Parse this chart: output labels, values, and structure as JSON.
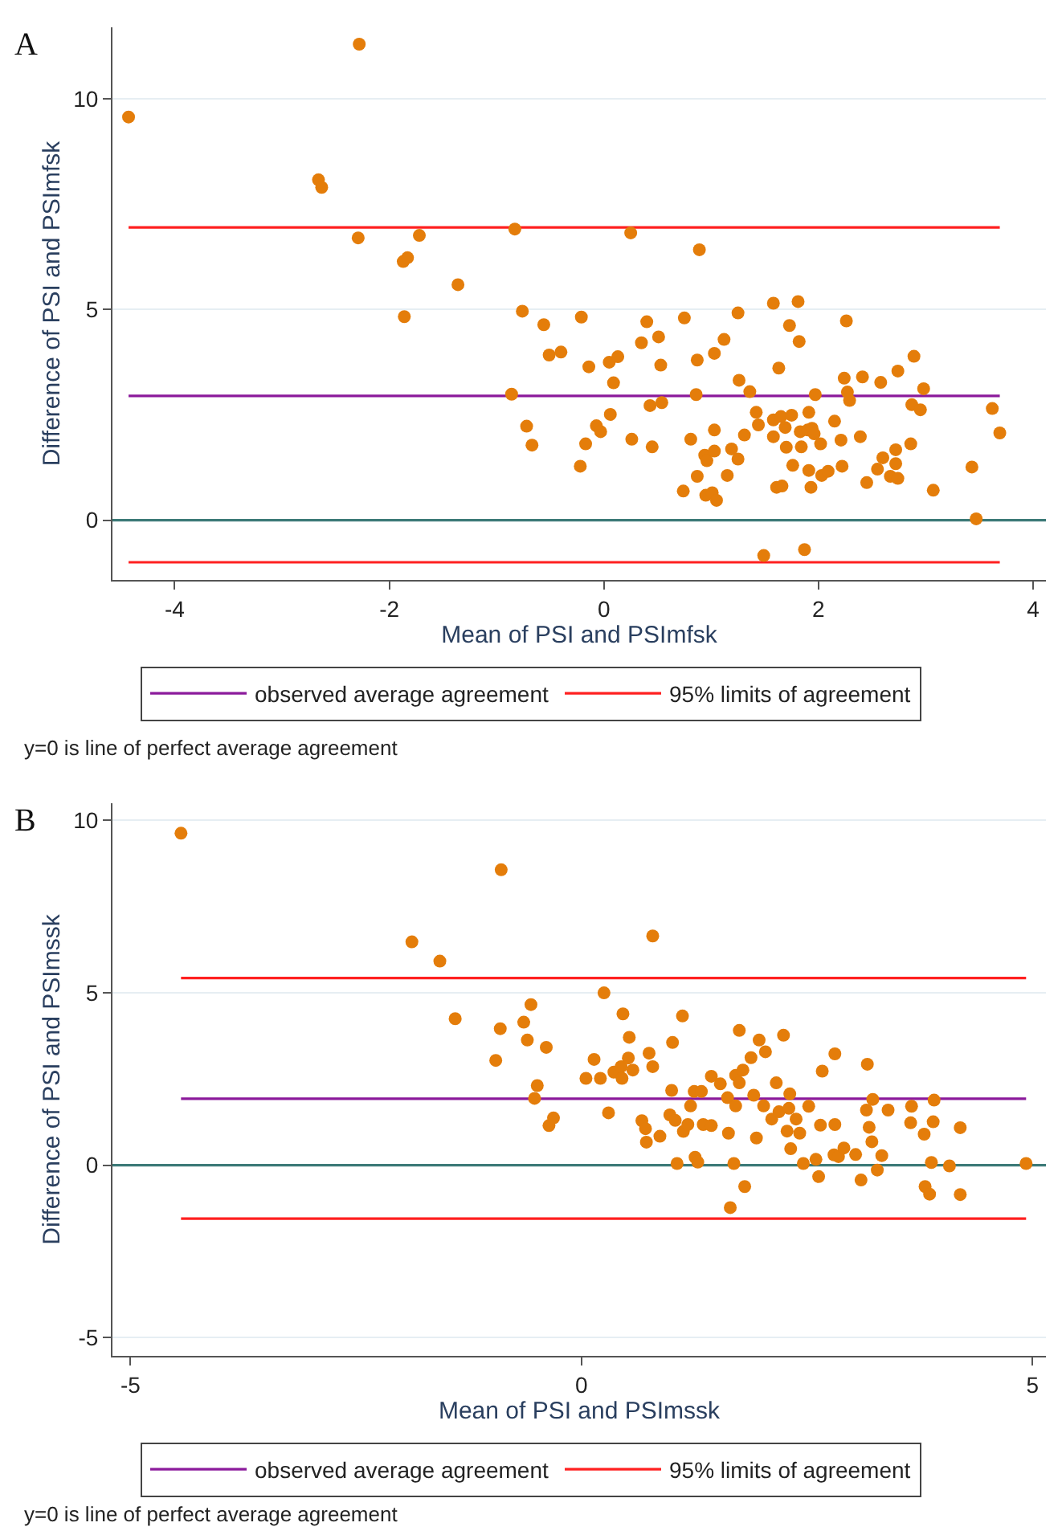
{
  "chart_data": [
    {
      "type": "scatter",
      "title": "A",
      "xlabel": "Mean of PSI and PSImfsk",
      "ylabel": "Difference of PSI and PSImfsk",
      "xlim": [
        -4.58,
        4.12
      ],
      "ylim": [
        -1.42,
        11.7
      ],
      "xticks": [
        -4,
        -2,
        0,
        2,
        4
      ],
      "yticks": [
        0,
        5,
        10
      ],
      "grid": "y",
      "legend": "bottom",
      "marker": "circle",
      "series": [
        {
          "color": "#e47d0a",
          "x": [
            -4.43,
            -2.28,
            -2.66,
            -2.63,
            -2.29,
            -1.72,
            -1.87,
            -1.83,
            -1.36,
            -1.86,
            -0.83,
            -0.76,
            -0.86,
            -0.72,
            -0.67,
            -0.56,
            -0.51,
            -0.4,
            -0.21,
            -0.14,
            -0.22,
            -0.17,
            -0.07,
            -0.03,
            0.05,
            0.13,
            0.09,
            0.06,
            0.25,
            0.26,
            0.35,
            0.4,
            0.51,
            0.53,
            0.43,
            0.54,
            0.45,
            0.75,
            0.87,
            0.86,
            0.81,
            0.74,
            0.87,
            0.89,
            0.94,
            0.96,
            1.03,
            1.03,
            0.95,
            1.01,
            1.05,
            1.03,
            1.12,
            1.15,
            1.19,
            1.25,
            1.25,
            1.26,
            1.31,
            1.36,
            1.42,
            1.44,
            1.49,
            1.58,
            1.58,
            1.58,
            1.63,
            1.61,
            1.66,
            1.65,
            1.69,
            1.7,
            1.73,
            1.75,
            1.76,
            1.81,
            1.82,
            1.83,
            1.84,
            1.87,
            1.91,
            1.91,
            1.9,
            1.93,
            1.94,
            1.96,
            1.97,
            2.02,
            2.03,
            2.09,
            2.15,
            2.21,
            2.22,
            2.24,
            2.26,
            2.27,
            2.29,
            2.39,
            2.41,
            2.45,
            2.55,
            2.58,
            2.6,
            2.67,
            2.72,
            2.72,
            2.74,
            2.74,
            2.86,
            2.87,
            2.89,
            2.95,
            2.98,
            3.07,
            3.43,
            3.47,
            3.62,
            3.69
          ],
          "values": [
            9.57,
            11.3,
            8.08,
            7.9,
            6.7,
            6.76,
            6.14,
            6.23,
            5.59,
            4.83,
            6.91,
            4.96,
            2.99,
            2.23,
            1.78,
            4.64,
            3.92,
            3.99,
            4.82,
            3.64,
            1.28,
            1.81,
            2.24,
            2.1,
            3.75,
            3.88,
            3.26,
            2.51,
            6.82,
            1.92,
            4.21,
            4.71,
            4.35,
            3.68,
            2.72,
            2.79,
            1.74,
            4.8,
            3.8,
            2.98,
            1.92,
            0.69,
            1.04,
            6.42,
            1.54,
            1.41,
            1.64,
            2.14,
            0.59,
            0.65,
            0.47,
            3.96,
            4.29,
            1.06,
            1.69,
            1.45,
            4.92,
            3.32,
            2.02,
            3.05,
            2.56,
            2.26,
            -0.84,
            5.15,
            1.98,
            2.38,
            3.61,
            0.78,
            0.81,
            2.46,
            2.2,
            1.73,
            4.62,
            2.49,
            1.3,
            5.19,
            4.24,
            2.1,
            1.74,
            -0.7,
            2.56,
            1.18,
            2.14,
            0.78,
            2.18,
            2.05,
            2.98,
            1.81,
            1.06,
            1.16,
            2.35,
            1.9,
            1.28,
            3.37,
            4.73,
            3.04,
            2.84,
            1.98,
            3.4,
            0.89,
            1.21,
            3.27,
            1.48,
            1.04,
            1.34,
            1.67,
            0.99,
            3.54,
            1.81,
            2.74,
            3.89,
            2.62,
            3.12,
            0.71,
            1.26,
            0.03,
            2.65,
            2.07
          ]
        }
      ],
      "ref_lines": [
        {
          "axis": "y",
          "value": 0,
          "color": "#3d7a78"
        },
        {
          "axis": "y",
          "value": 2.95,
          "label": "observed average agreement",
          "color": "#8b1a9b"
        },
        {
          "axis": "y",
          "value": 6.95,
          "label": "95% limits of agreement",
          "color": "#ff2020"
        },
        {
          "axis": "y",
          "value": -1.0,
          "color": "#ff2020"
        }
      ],
      "annotations": [
        "y=0 is line of perfect average agreement"
      ]
    },
    {
      "type": "scatter",
      "title": "B",
      "xlabel": "Mean of PSI and PSImssk",
      "ylabel": "Difference of PSI and PSImssk",
      "xlim": [
        -5.2,
        5.15
      ],
      "ylim": [
        -5.53,
        10.5
      ],
      "xticks": [
        -5,
        0,
        5
      ],
      "yticks": [
        -5,
        0,
        5,
        10
      ],
      "grid": "y",
      "legend": "bottom",
      "marker": "circle",
      "series": [
        {
          "color": "#e47d0a",
          "x": [
            -4.44,
            -0.89,
            -1.88,
            -1.57,
            -1.4,
            -0.9,
            -0.95,
            -0.56,
            -0.64,
            -0.6,
            -0.49,
            -0.52,
            -0.39,
            -0.36,
            -0.31,
            0.05,
            0.14,
            0.21,
            0.25,
            0.3,
            0.36,
            0.44,
            0.45,
            0.46,
            0.53,
            0.52,
            0.57,
            0.67,
            0.71,
            0.72,
            0.75,
            0.79,
            0.87,
            0.79,
            1.0,
            1.01,
            0.98,
            1.04,
            1.06,
            1.12,
            1.13,
            1.18,
            1.21,
            1.25,
            1.26,
            1.29,
            1.33,
            1.35,
            1.44,
            1.44,
            1.54,
            1.62,
            1.63,
            1.65,
            1.69,
            1.71,
            1.71,
            1.75,
            1.75,
            1.79,
            1.81,
            1.88,
            1.91,
            1.94,
            1.97,
            2.02,
            2.04,
            2.11,
            2.16,
            2.19,
            2.24,
            2.28,
            2.31,
            2.32,
            2.3,
            2.38,
            2.42,
            2.46,
            2.52,
            2.6,
            2.63,
            2.65,
            2.67,
            2.8,
            2.81,
            2.81,
            2.85,
            2.91,
            3.04,
            3.1,
            3.17,
            3.16,
            3.19,
            3.22,
            3.23,
            3.28,
            3.33,
            3.4,
            3.66,
            3.65,
            3.8,
            3.81,
            3.86,
            3.88,
            3.9,
            3.91,
            4.08,
            4.2,
            4.2,
            4.93
          ],
          "values": [
            9.63,
            8.57,
            6.48,
            5.92,
            4.25,
            3.96,
            3.04,
            4.66,
            4.15,
            3.63,
            2.31,
            1.94,
            3.42,
            1.15,
            1.37,
            2.52,
            3.07,
            2.52,
            5.0,
            1.52,
            2.7,
            2.86,
            2.52,
            4.39,
            3.71,
            3.11,
            2.76,
            1.29,
            1.06,
            0.67,
            3.25,
            2.86,
            0.84,
            6.65,
            2.17,
            3.56,
            1.46,
            1.3,
            0.05,
            4.33,
            0.98,
            1.18,
            1.72,
            2.14,
            0.23,
            0.09,
            2.14,
            1.18,
            1.15,
            2.58,
            2.36,
            1.96,
            0.93,
            -1.23,
            0.05,
            1.72,
            2.61,
            3.91,
            2.39,
            2.76,
            -0.62,
            3.12,
            2.03,
            0.79,
            3.63,
            1.72,
            3.29,
            1.34,
            2.39,
            1.55,
            3.77,
            0.99,
            2.07,
            0.48,
            1.65,
            1.34,
            0.93,
            0.05,
            1.71,
            0.17,
            -0.33,
            1.16,
            2.73,
            0.3,
            1.18,
            3.23,
            0.25,
            0.5,
            0.31,
            -0.43,
            2.93,
            1.6,
            1.1,
            0.68,
            1.91,
            -0.14,
            0.28,
            1.6,
            1.71,
            1.23,
            0.9,
            -0.62,
            -0.84,
            0.08,
            1.26,
            1.89,
            -0.02,
            1.09,
            -0.85,
            0.05
          ]
        }
      ],
      "ref_lines": [
        {
          "axis": "y",
          "value": 0,
          "color": "#3d7a78"
        },
        {
          "axis": "y",
          "value": 1.93,
          "label": "observed average agreement",
          "color": "#8b1a9b"
        },
        {
          "axis": "y",
          "value": 5.43,
          "label": "95% limits of agreement",
          "color": "#ff2020"
        },
        {
          "axis": "y",
          "value": -1.55,
          "color": "#ff2020"
        }
      ],
      "annotations": [
        "y=0 is line of perfect average agreement"
      ]
    }
  ]
}
